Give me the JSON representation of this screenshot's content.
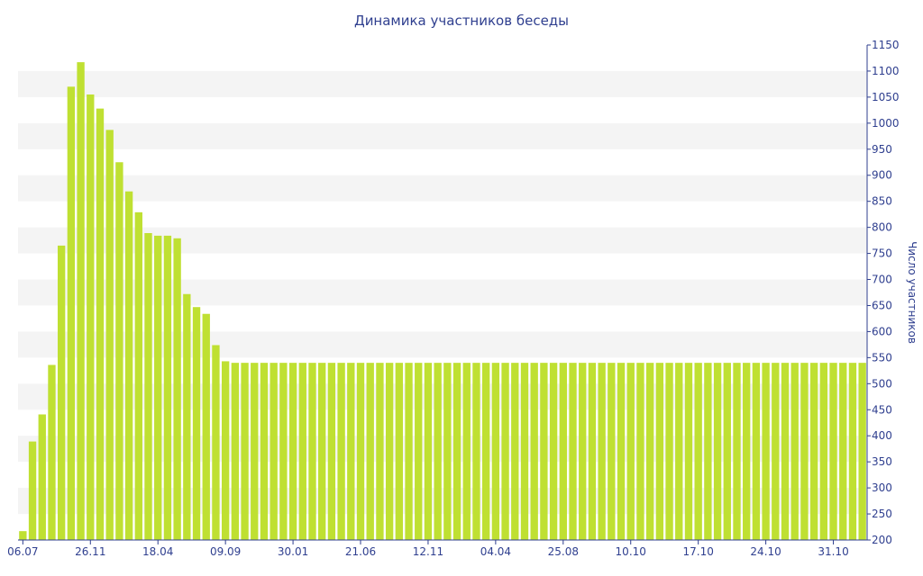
{
  "chart_data": {
    "type": "bar",
    "title": "Динамика участников беседы",
    "xlabel": "",
    "ylabel": "Число участников",
    "ylim": [
      200,
      1150
    ],
    "y_ticks": [
      200,
      250,
      300,
      350,
      400,
      450,
      500,
      550,
      600,
      650,
      700,
      750,
      800,
      850,
      900,
      950,
      1000,
      1050,
      1100,
      1150
    ],
    "y_axis_side": "right",
    "x_tick_labels": [
      {
        "label": "06.07",
        "index": 0
      },
      {
        "label": "26.11",
        "index": 7
      },
      {
        "label": "18.04",
        "index": 14
      },
      {
        "label": "09.09",
        "index": 21
      },
      {
        "label": "30.01",
        "index": 28
      },
      {
        "label": "21.06",
        "index": 35
      },
      {
        "label": "12.11",
        "index": 42
      },
      {
        "label": "04.04",
        "index": 49
      },
      {
        "label": "25.08",
        "index": 56
      },
      {
        "label": "10.10",
        "index": 63
      },
      {
        "label": "17.10",
        "index": 70
      },
      {
        "label": "24.10",
        "index": 77
      },
      {
        "label": "31.10",
        "index": 84
      }
    ],
    "values": [
      217,
      389,
      441,
      536,
      765,
      1070,
      1117,
      1055,
      1028,
      987,
      925,
      869,
      829,
      789,
      784,
      784,
      779,
      672,
      647,
      634,
      574,
      543,
      540,
      540,
      540,
      540,
      540,
      540,
      540,
      540,
      540,
      540,
      540,
      540,
      540,
      540,
      540,
      540,
      540,
      540,
      540,
      540,
      540,
      540,
      540,
      540,
      540,
      540,
      540,
      540,
      540,
      540,
      540,
      540,
      540,
      540,
      540,
      540,
      540,
      540,
      540,
      540,
      540,
      540,
      540,
      540,
      540,
      540,
      540,
      540,
      540,
      540,
      540,
      540,
      540,
      540,
      540,
      540,
      540,
      540,
      540,
      540,
      540,
      540,
      540,
      540,
      540,
      540
    ],
    "bar_color": "#bfe032",
    "band_color": "#f4f4f4",
    "text_color": "#2f3f8f",
    "axis_color": "#2f3f8f",
    "grid": "alternating-bands",
    "legend": "none"
  }
}
